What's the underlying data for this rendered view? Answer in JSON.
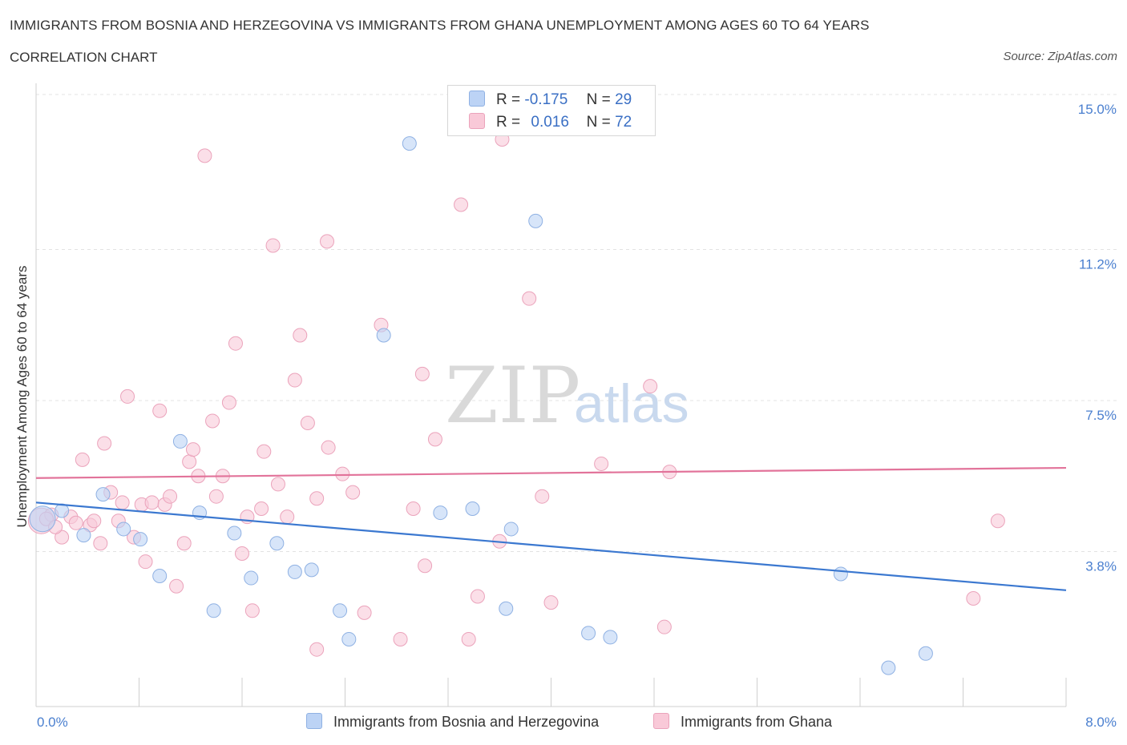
{
  "title": "IMMIGRANTS FROM BOSNIA AND HERZEGOVINA VS IMMIGRANTS FROM GHANA UNEMPLOYMENT AMONG AGES 60 TO 64 YEARS",
  "subtitle": "CORRELATION CHART",
  "source": "Source: ZipAtlas.com",
  "watermark": {
    "zip": "ZIP",
    "atlas": "atlas"
  },
  "legend": {
    "rows": [
      {
        "r_label": "R =",
        "r_value": "-0.175",
        "n_label": "N =",
        "n_value": "29"
      },
      {
        "r_label": "R =",
        "r_value": "0.016",
        "n_label": "N =",
        "n_value": "72"
      }
    ]
  },
  "bottom_legend": {
    "series1": "Immigrants from Bosnia and Herzegovina",
    "series2": "Immigrants from Ghana"
  },
  "colors": {
    "series1_fill": "#bcd3f5",
    "series1_stroke": "#8fb1e3",
    "series1_line": "#3b78d0",
    "series2_fill": "#f9c9d8",
    "series2_stroke": "#eba3bb",
    "series2_line": "#e2739a",
    "tick_text": "#4a7fcf",
    "grid": "#e3e3e3"
  },
  "chart_data": {
    "type": "scatter",
    "title": "IMMIGRANTS FROM BOSNIA AND HERZEGOVINA VS IMMIGRANTS FROM GHANA UNEMPLOYMENT AMONG AGES 60 TO 64 YEARS",
    "xlabel": "",
    "ylabel": "Unemployment Among Ages 60 to 64 years",
    "xlim": [
      0,
      8
    ],
    "ylim": [
      0,
      15
    ],
    "x_tick_labels": [
      "0.0%",
      "8.0%"
    ],
    "y_ticks": [
      3.8,
      7.5,
      11.2,
      15.0
    ],
    "y_tick_labels": [
      "3.8%",
      "7.5%",
      "11.2%",
      "15.0%"
    ],
    "grid": true,
    "series": [
      {
        "name": "Immigrants from Bosnia and Herzegovina",
        "R": -0.175,
        "N": 29,
        "trend": {
          "x": [
            0,
            8
          ],
          "y": [
            5.0,
            2.85
          ]
        },
        "points": [
          {
            "x": 0.05,
            "y": 4.6,
            "size": 16
          },
          {
            "x": 0.2,
            "y": 4.8
          },
          {
            "x": 0.37,
            "y": 4.2
          },
          {
            "x": 0.52,
            "y": 5.2
          },
          {
            "x": 0.68,
            "y": 4.35
          },
          {
            "x": 0.81,
            "y": 4.1
          },
          {
            "x": 0.96,
            "y": 3.2
          },
          {
            "x": 1.12,
            "y": 6.5
          },
          {
            "x": 1.27,
            "y": 4.75
          },
          {
            "x": 1.38,
            "y": 2.35
          },
          {
            "x": 1.54,
            "y": 4.25
          },
          {
            "x": 1.67,
            "y": 3.15
          },
          {
            "x": 1.87,
            "y": 4.0
          },
          {
            "x": 2.01,
            "y": 3.3
          },
          {
            "x": 2.14,
            "y": 3.35
          },
          {
            "x": 2.36,
            "y": 2.35
          },
          {
            "x": 2.43,
            "y": 1.65
          },
          {
            "x": 2.7,
            "y": 9.1
          },
          {
            "x": 2.9,
            "y": 13.8
          },
          {
            "x": 3.14,
            "y": 4.75
          },
          {
            "x": 3.39,
            "y": 4.85
          },
          {
            "x": 3.65,
            "y": 2.4
          },
          {
            "x": 3.69,
            "y": 4.35
          },
          {
            "x": 3.88,
            "y": 11.9
          },
          {
            "x": 4.29,
            "y": 1.8
          },
          {
            "x": 4.46,
            "y": 1.7
          },
          {
            "x": 6.25,
            "y": 3.25
          },
          {
            "x": 6.62,
            "y": 0.95
          },
          {
            "x": 6.91,
            "y": 1.3
          }
        ]
      },
      {
        "name": "Immigrants from Ghana",
        "R": 0.016,
        "N": 72,
        "trend": {
          "x": [
            0,
            8
          ],
          "y": [
            5.6,
            5.85
          ]
        },
        "points": [
          {
            "x": 0.04,
            "y": 4.55,
            "size": 16
          },
          {
            "x": 0.12,
            "y": 4.7
          },
          {
            "x": 0.2,
            "y": 4.15
          },
          {
            "x": 0.27,
            "y": 4.65
          },
          {
            "x": 0.31,
            "y": 4.5
          },
          {
            "x": 0.36,
            "y": 6.05
          },
          {
            "x": 0.42,
            "y": 4.45
          },
          {
            "x": 0.45,
            "y": 4.55
          },
          {
            "x": 0.5,
            "y": 4.0
          },
          {
            "x": 0.53,
            "y": 6.45
          },
          {
            "x": 0.58,
            "y": 5.25
          },
          {
            "x": 0.64,
            "y": 4.55
          },
          {
            "x": 0.67,
            "y": 5.0
          },
          {
            "x": 0.71,
            "y": 7.6
          },
          {
            "x": 0.76,
            "y": 4.15
          },
          {
            "x": 0.82,
            "y": 4.95
          },
          {
            "x": 0.85,
            "y": 3.55
          },
          {
            "x": 0.9,
            "y": 5.0
          },
          {
            "x": 0.96,
            "y": 7.25
          },
          {
            "x": 1.0,
            "y": 4.95
          },
          {
            "x": 1.04,
            "y": 5.15
          },
          {
            "x": 1.09,
            "y": 2.95
          },
          {
            "x": 1.15,
            "y": 4.0
          },
          {
            "x": 1.19,
            "y": 6.0
          },
          {
            "x": 1.22,
            "y": 6.3
          },
          {
            "x": 1.26,
            "y": 5.65
          },
          {
            "x": 1.31,
            "y": 13.5
          },
          {
            "x": 1.37,
            "y": 7.0
          },
          {
            "x": 1.4,
            "y": 5.15
          },
          {
            "x": 1.45,
            "y": 5.65
          },
          {
            "x": 1.5,
            "y": 7.45
          },
          {
            "x": 1.55,
            "y": 8.9
          },
          {
            "x": 1.6,
            "y": 3.75
          },
          {
            "x": 1.64,
            "y": 4.65
          },
          {
            "x": 1.68,
            "y": 2.35
          },
          {
            "x": 1.75,
            "y": 4.85
          },
          {
            "x": 1.77,
            "y": 6.25
          },
          {
            "x": 1.84,
            "y": 11.3
          },
          {
            "x": 1.88,
            "y": 5.45
          },
          {
            "x": 1.95,
            "y": 4.65
          },
          {
            "x": 2.01,
            "y": 8.0
          },
          {
            "x": 2.05,
            "y": 9.1
          },
          {
            "x": 2.11,
            "y": 6.95
          },
          {
            "x": 2.18,
            "y": 5.1
          },
          {
            "x": 2.18,
            "y": 1.4
          },
          {
            "x": 2.26,
            "y": 11.4
          },
          {
            "x": 2.27,
            "y": 6.35
          },
          {
            "x": 2.38,
            "y": 5.7
          },
          {
            "x": 2.46,
            "y": 5.25
          },
          {
            "x": 2.55,
            "y": 2.3
          },
          {
            "x": 2.68,
            "y": 9.35
          },
          {
            "x": 2.83,
            "y": 1.65
          },
          {
            "x": 2.93,
            "y": 4.85
          },
          {
            "x": 3.0,
            "y": 8.15
          },
          {
            "x": 3.02,
            "y": 3.45
          },
          {
            "x": 3.1,
            "y": 6.55
          },
          {
            "x": 3.3,
            "y": 12.3
          },
          {
            "x": 3.36,
            "y": 1.65
          },
          {
            "x": 3.43,
            "y": 2.7
          },
          {
            "x": 3.6,
            "y": 4.05
          },
          {
            "x": 3.62,
            "y": 13.9
          },
          {
            "x": 3.83,
            "y": 10.0
          },
          {
            "x": 3.93,
            "y": 5.15
          },
          {
            "x": 4.0,
            "y": 2.55
          },
          {
            "x": 4.39,
            "y": 5.95
          },
          {
            "x": 4.77,
            "y": 7.85
          },
          {
            "x": 4.88,
            "y": 1.95
          },
          {
            "x": 4.92,
            "y": 5.75
          },
          {
            "x": 7.28,
            "y": 2.65
          },
          {
            "x": 7.47,
            "y": 4.55
          },
          {
            "x": 0.08,
            "y": 4.6
          },
          {
            "x": 0.15,
            "y": 4.4
          }
        ]
      }
    ]
  }
}
